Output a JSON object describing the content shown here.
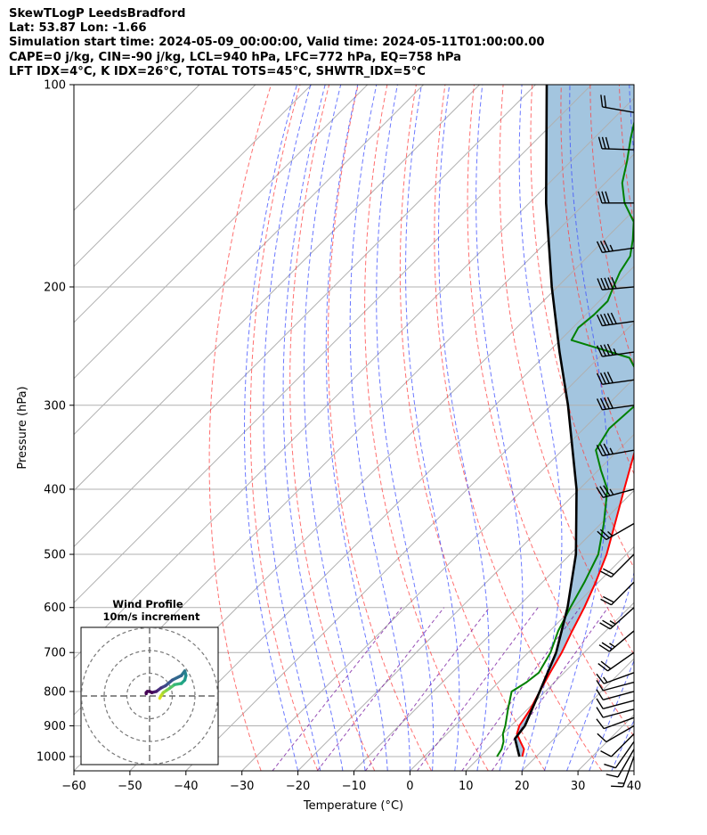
{
  "header": {
    "line1": "SkewTLogP LeedsBradford",
    "line2": "Lat: 53.87   Lon: -1.66",
    "line3": "Simulation start time: 2024-05-09_00:00:00, Valid time: 2024-05-11T01:00:00.00",
    "line4": "CAPE=0 j/kg, CIN=-90 j/kg, LCL=940 hPa, LFC=772 hPa, EQ=758 hPa",
    "line5": "LFT IDX=4°C, K IDX=26°C, TOTAL TOTS=45°C, SHWTR_IDX=5°C"
  },
  "chart_data": {
    "type": "line",
    "xlabel": "Temperature (°C)",
    "ylabel": "Pressure (hPa)",
    "xlim": [
      -60,
      40
    ],
    "ylim": [
      1050,
      100
    ],
    "y_scale": "log",
    "skew": true,
    "grid": true,
    "x_ticks": [
      -60,
      -50,
      -40,
      -30,
      -20,
      -10,
      0,
      10,
      20,
      30,
      40
    ],
    "y_ticks": [
      1000,
      900,
      800,
      700,
      600,
      500,
      400,
      300,
      200,
      100
    ],
    "series": [
      {
        "role": "temperature",
        "color": "#ff0000",
        "points": [
          [
            1000,
            17.5
          ],
          [
            975,
            16.5
          ],
          [
            950,
            14.5
          ],
          [
            925,
            12.5
          ],
          [
            900,
            11.5
          ],
          [
            850,
            10.5
          ],
          [
            800,
            9.0
          ],
          [
            750,
            7.5
          ],
          [
            700,
            6.0
          ],
          [
            650,
            4.0
          ],
          [
            600,
            2.0
          ],
          [
            550,
            -0.5
          ],
          [
            500,
            -3.5
          ],
          [
            450,
            -7.5
          ],
          [
            400,
            -12.0
          ],
          [
            350,
            -17.0
          ],
          [
            300,
            -23.5
          ],
          [
            275,
            -27.5
          ],
          [
            250,
            -31.5
          ],
          [
            225,
            -36.0
          ],
          [
            200,
            -41.5
          ],
          [
            190,
            -45.0
          ],
          [
            180,
            -44.0
          ],
          [
            170,
            -43.0
          ],
          [
            160,
            -43.5
          ],
          [
            150,
            -45.0
          ],
          [
            140,
            -47.0
          ],
          [
            130,
            -49.5
          ],
          [
            120,
            -53.5
          ],
          [
            110,
            -56.0
          ],
          [
            100,
            -59.0
          ]
        ]
      },
      {
        "role": "dewpoint",
        "color": "#008000",
        "points": [
          [
            1000,
            13.0
          ],
          [
            975,
            12.5
          ],
          [
            950,
            11.5
          ],
          [
            925,
            10.0
          ],
          [
            900,
            9.0
          ],
          [
            850,
            6.5
          ],
          [
            800,
            4.0
          ],
          [
            775,
            5.0
          ],
          [
            750,
            5.5
          ],
          [
            700,
            4.0
          ],
          [
            650,
            1.5
          ],
          [
            600,
            -0.5
          ],
          [
            550,
            -2.5
          ],
          [
            500,
            -5.0
          ],
          [
            450,
            -9.5
          ],
          [
            400,
            -15.0
          ],
          [
            375,
            -19.5
          ],
          [
            350,
            -24.0
          ],
          [
            325,
            -25.5
          ],
          [
            300,
            -25.0
          ],
          [
            275,
            -28.5
          ],
          [
            255,
            -34.5
          ],
          [
            240,
            -48.0
          ],
          [
            230,
            -49.0
          ],
          [
            220,
            -48.5
          ],
          [
            210,
            -48.5
          ],
          [
            200,
            -50.0
          ],
          [
            190,
            -51.5
          ],
          [
            180,
            -52.5
          ],
          [
            170,
            -55.0
          ],
          [
            160,
            -58.0
          ],
          [
            150,
            -63.0
          ],
          [
            140,
            -67.0
          ],
          [
            130,
            -70.0
          ],
          [
            120,
            -73.5
          ],
          [
            110,
            -77.0
          ],
          [
            100,
            -81.0
          ]
        ]
      },
      {
        "role": "parcel",
        "color": "#000000",
        "points": [
          [
            1000,
            17.0
          ],
          [
            940,
            13.0
          ],
          [
            900,
            12.5
          ],
          [
            800,
            9.0
          ],
          [
            700,
            5.0
          ],
          [
            600,
            -1.0
          ],
          [
            500,
            -9.0
          ],
          [
            400,
            -20.5
          ],
          [
            300,
            -37.0
          ],
          [
            250,
            -48.0
          ],
          [
            200,
            -61.0
          ],
          [
            150,
            -77.0
          ],
          [
            100,
            -98.0
          ]
        ]
      }
    ],
    "wind_barbs": {
      "pressures": [
        1000,
        975,
        950,
        925,
        900,
        875,
        850,
        825,
        800,
        775,
        750,
        700,
        650,
        600,
        550,
        500,
        450,
        400,
        350,
        300,
        275,
        250,
        225,
        200,
        175,
        150,
        125,
        110
      ],
      "speed_kt": [
        15,
        10,
        10,
        10,
        10,
        10,
        10,
        10,
        10,
        10,
        15,
        20,
        25,
        25,
        20,
        20,
        25,
        35,
        35,
        40,
        40,
        45,
        50,
        50,
        35,
        30,
        30,
        20
      ],
      "dir_deg": [
        200,
        210,
        215,
        225,
        240,
        250,
        255,
        255,
        255,
        255,
        250,
        235,
        230,
        228,
        225,
        225,
        240,
        255,
        260,
        262,
        262,
        262,
        262,
        265,
        262,
        270,
        272,
        280
      ]
    },
    "inset": {
      "title_line1": "Wind Profile",
      "title_line2": "10m/s increment",
      "rings": [
        1,
        2,
        3
      ],
      "hodograph_uv": [
        [
          4.5,
          -1.0
        ],
        [
          5,
          0
        ],
        [
          6,
          1.5
        ],
        [
          7.5,
          2.5
        ],
        [
          9,
          3.5
        ],
        [
          11,
          5
        ],
        [
          14,
          5.5
        ],
        [
          15.5,
          7
        ],
        [
          16,
          9
        ],
        [
          15.5,
          11
        ],
        [
          14,
          9
        ],
        [
          10,
          7
        ],
        [
          7,
          4.5
        ],
        [
          5,
          3.5
        ],
        [
          3,
          2
        ],
        [
          1,
          1.5
        ],
        [
          0,
          2
        ],
        [
          -1,
          2
        ],
        [
          -1.5,
          1.5
        ],
        [
          -1.5,
          1
        ]
      ]
    }
  }
}
